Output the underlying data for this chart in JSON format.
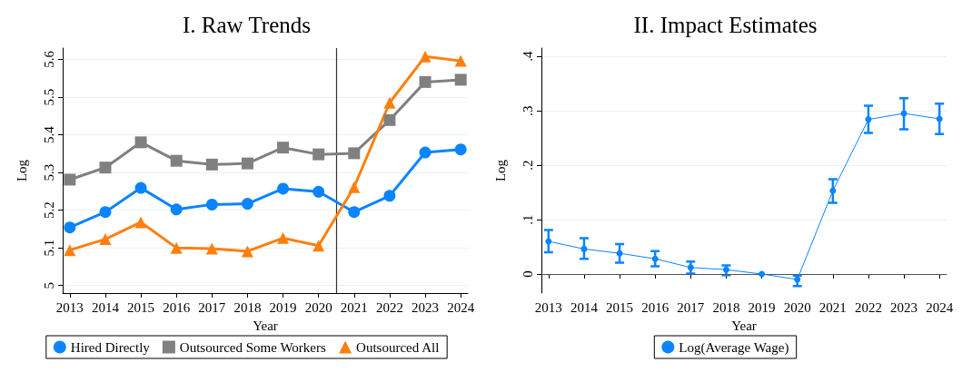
{
  "chart_data": [
    {
      "type": "line",
      "title": "I. Raw Trends",
      "xlabel": "Year",
      "ylabel": "Log",
      "x": [
        2013,
        2014,
        2015,
        2016,
        2017,
        2018,
        2019,
        2020,
        2021,
        2022,
        2023,
        2024
      ],
      "xlim": [
        2012.8,
        2024.2
      ],
      "xticks": [
        2013,
        2014,
        2015,
        2016,
        2017,
        2018,
        2019,
        2020,
        2021,
        2022,
        2023,
        2024
      ],
      "ylim": [
        4.98,
        5.63
      ],
      "yticks": [
        5,
        5.1,
        5.2,
        5.3,
        5.4,
        5.5,
        5.6
      ],
      "grid": "y",
      "legend": "bottom",
      "ref_lines": [
        {
          "axis": "x",
          "value": 2020.5,
          "color": "#333333"
        }
      ],
      "series": [
        {
          "name": "Hired Directly",
          "color": "#0a84ff",
          "marker": "circle",
          "values": [
            5.154,
            5.195,
            5.259,
            5.202,
            5.215,
            5.217,
            5.257,
            5.249,
            5.195,
            5.238,
            5.353,
            5.361
          ]
        },
        {
          "name": "Outsourced Some Workers",
          "color": "#808080",
          "marker": "square",
          "values": [
            5.281,
            5.313,
            5.38,
            5.331,
            5.321,
            5.324,
            5.366,
            5.348,
            5.351,
            5.439,
            5.54,
            5.546
          ]
        },
        {
          "name": "Outsourced All",
          "color": "#ff7f0e",
          "marker": "triangle",
          "values": [
            5.094,
            5.123,
            5.168,
            5.1,
            5.098,
            5.091,
            5.126,
            5.106,
            5.261,
            5.485,
            5.608,
            5.596
          ]
        }
      ]
    },
    {
      "type": "line",
      "title": "II. Impact Estimates",
      "xlabel": "Year",
      "ylabel": "Log",
      "x": [
        2013,
        2014,
        2015,
        2016,
        2017,
        2018,
        2019,
        2020,
        2021,
        2022,
        2023,
        2024
      ],
      "xlim": [
        2012.8,
        2024.2
      ],
      "xticks": [
        2013,
        2014,
        2015,
        2016,
        2017,
        2018,
        2019,
        2020,
        2021,
        2022,
        2023,
        2024
      ],
      "ylim": [
        -0.035,
        0.415
      ],
      "yticks": [
        {
          "value": 0,
          "label": "0"
        },
        {
          "value": 0.1,
          "label": ".1"
        },
        {
          "value": 0.2,
          "label": ".2"
        },
        {
          "value": 0.3,
          "label": ".3"
        },
        {
          "value": 0.4,
          "label": ".4"
        }
      ],
      "grid": "y",
      "legend": "bottom",
      "marker": "circle",
      "ref_lines": [
        {
          "axis": "y",
          "value": 0,
          "color": "#555555"
        }
      ],
      "series": [
        {
          "name": "Log(Average Wage)",
          "color": "#0a84ff",
          "values": [
            0.06,
            0.046,
            0.038,
            0.028,
            0.012,
            0.008,
            0,
            -0.01,
            0.153,
            0.284,
            0.295,
            0.285
          ],
          "errors": [
            [
              0.04,
              0.081
            ],
            [
              0.028,
              0.066
            ],
            [
              0.021,
              0.055
            ],
            [
              0.014,
              0.042
            ],
            [
              0.001,
              0.023
            ],
            [
              -0.002,
              0.016
            ],
            null,
            [
              -0.022,
              -0.003
            ],
            [
              0.131,
              0.174
            ],
            [
              0.259,
              0.309
            ],
            [
              0.266,
              0.323
            ],
            [
              0.257,
              0.313
            ]
          ]
        }
      ]
    }
  ]
}
